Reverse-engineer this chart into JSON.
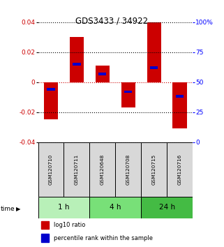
{
  "title": "GDS3433 / 34922",
  "samples": [
    "GSM120710",
    "GSM120711",
    "GSM120648",
    "GSM120708",
    "GSM120715",
    "GSM120716"
  ],
  "groups": [
    {
      "label": "1 h",
      "indices": [
        0,
        1
      ],
      "color": "#b8f0b8"
    },
    {
      "label": "4 h",
      "indices": [
        2,
        3
      ],
      "color": "#78e078"
    },
    {
      "label": "24 h",
      "indices": [
        4,
        5
      ],
      "color": "#44bb44"
    }
  ],
  "log10_ratio": [
    -0.025,
    0.03,
    0.011,
    -0.017,
    0.04,
    -0.031
  ],
  "percentile_rank": [
    0.44,
    0.65,
    0.57,
    0.42,
    0.62,
    0.38
  ],
  "ylim_left": [
    -0.04,
    0.04
  ],
  "ylim_right": [
    0,
    100
  ],
  "yticks_left": [
    -0.04,
    -0.02,
    0,
    0.02,
    0.04
  ],
  "yticks_right": [
    0,
    25,
    50,
    75,
    100
  ],
  "bar_color_red": "#cc0000",
  "bar_color_blue": "#0000cc",
  "zero_line_color": "#cc0000",
  "label_log10": "log10 ratio",
  "label_pct": "percentile rank within the sample",
  "bg_color": "#d8d8d8"
}
